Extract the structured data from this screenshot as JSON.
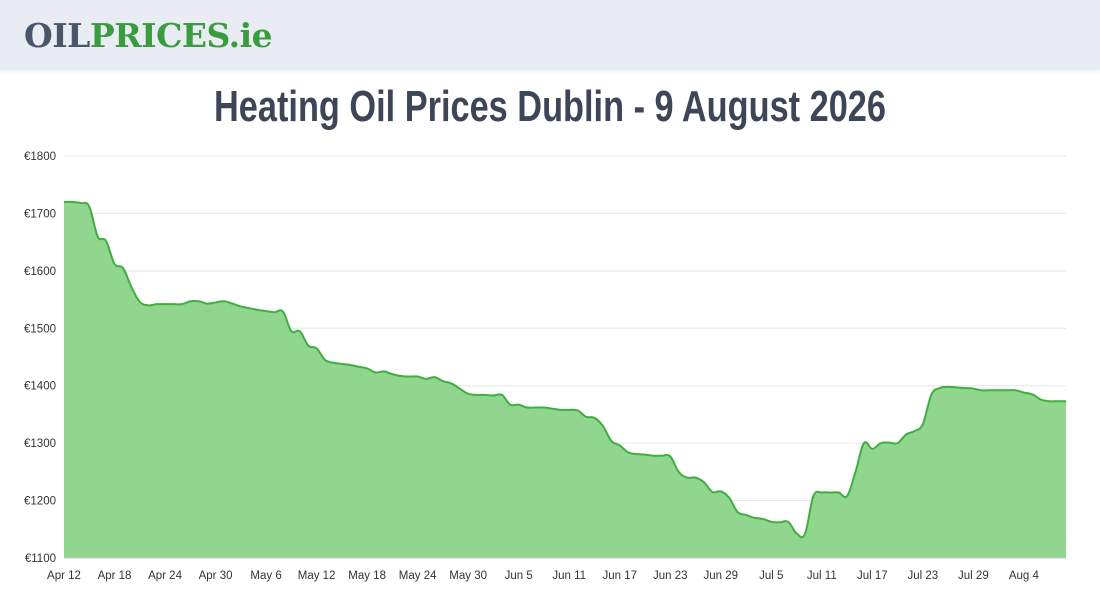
{
  "logo": {
    "part1": "OIL",
    "part2": "PRICES",
    "part3": ".ie"
  },
  "page_title": "Heating Oil Prices Dublin - 9 August 2026",
  "colors": {
    "header_bg": "#e9ecf3",
    "logo_dark": "#495569",
    "logo_green": "#3a9b3f",
    "line": "#3fae3f",
    "fill": "#90d68f"
  },
  "chart_data": {
    "type": "area",
    "title": "",
    "xlabel": "",
    "ylabel": "",
    "ylim": [
      1100,
      1800
    ],
    "y_ticks": [
      "€1100",
      "€1200",
      "€1300",
      "€1400",
      "€1500",
      "€1600",
      "€1700",
      "€1800"
    ],
    "x_tick_labels": [
      "Apr 12",
      "Apr 18",
      "Apr 24",
      "Apr 30",
      "May 6",
      "May 12",
      "May 18",
      "May 24",
      "May 30",
      "Jun 5",
      "Jun 11",
      "Jun 17",
      "Jun 23",
      "Jun 29",
      "Jul 5",
      "Jul 11",
      "Jul 17",
      "Jul 23",
      "Jul 29",
      "Aug 4"
    ],
    "grid": true,
    "legend": "none",
    "x_start": "Apr 12",
    "x_end": "Aug 9",
    "x_dates": [
      "Apr 12",
      "Apr 13",
      "Apr 14",
      "Apr 15",
      "Apr 16",
      "Apr 17",
      "Apr 18",
      "Apr 19",
      "Apr 20",
      "Apr 21",
      "Apr 22",
      "Apr 23",
      "Apr 24",
      "Apr 25",
      "Apr 26",
      "Apr 27",
      "Apr 28",
      "Apr 29",
      "Apr 30",
      "May 1",
      "May 2",
      "May 3",
      "May 4",
      "May 5",
      "May 6",
      "May 7",
      "May 8",
      "May 9",
      "May 10",
      "May 11",
      "May 12",
      "May 13",
      "May 14",
      "May 15",
      "May 16",
      "May 17",
      "May 18",
      "May 19",
      "May 20",
      "May 21",
      "May 22",
      "May 23",
      "May 24",
      "May 25",
      "May 26",
      "May 27",
      "May 28",
      "May 29",
      "May 30",
      "May 31",
      "Jun 1",
      "Jun 2",
      "Jun 3",
      "Jun 4",
      "Jun 5",
      "Jun 6",
      "Jun 7",
      "Jun 8",
      "Jun 9",
      "Jun 10",
      "Jun 11",
      "Jun 12",
      "Jun 13",
      "Jun 14",
      "Jun 15",
      "Jun 16",
      "Jun 17",
      "Jun 18",
      "Jun 19",
      "Jun 20",
      "Jun 21",
      "Jun 22",
      "Jun 23",
      "Jun 24",
      "Jun 25",
      "Jun 26",
      "Jun 27",
      "Jun 28",
      "Jun 29",
      "Jun 30",
      "Jul 1",
      "Jul 2",
      "Jul 3",
      "Jul 4",
      "Jul 5",
      "Jul 6",
      "Jul 7",
      "Jul 8",
      "Jul 9",
      "Jul 10",
      "Jul 11",
      "Jul 12",
      "Jul 13",
      "Jul 14",
      "Jul 15",
      "Jul 16",
      "Jul 17",
      "Jul 18",
      "Jul 19",
      "Jul 20",
      "Jul 21",
      "Jul 22",
      "Jul 23",
      "Jul 24",
      "Jul 25",
      "Jul 26",
      "Jul 27",
      "Jul 28",
      "Jul 29",
      "Jul 30",
      "Jul 31",
      "Aug 1",
      "Aug 2",
      "Aug 3",
      "Aug 4",
      "Aug 5",
      "Aug 6",
      "Aug 7",
      "Aug 8",
      "Aug 9"
    ],
    "values": [
      1720,
      1720,
      1718,
      1712,
      1660,
      1652,
      1612,
      1605,
      1572,
      1546,
      1540,
      1542,
      1542,
      1542,
      1542,
      1547,
      1547,
      1543,
      1545,
      1547,
      1543,
      1538,
      1535,
      1532,
      1530,
      1528,
      1529,
      1495,
      1495,
      1470,
      1465,
      1445,
      1440,
      1438,
      1436,
      1433,
      1430,
      1423,
      1425,
      1420,
      1417,
      1416,
      1416,
      1412,
      1415,
      1408,
      1404,
      1395,
      1386,
      1384,
      1384,
      1383,
      1384,
      1367,
      1367,
      1362,
      1362,
      1362,
      1360,
      1358,
      1358,
      1357,
      1346,
      1344,
      1330,
      1304,
      1296,
      1284,
      1281,
      1280,
      1278,
      1278,
      1277,
      1250,
      1240,
      1240,
      1232,
      1215,
      1216,
      1205,
      1180,
      1175,
      1170,
      1168,
      1163,
      1162,
      1163,
      1143,
      1142,
      1208,
      1214,
      1214,
      1214,
      1208,
      1250,
      1300,
      1290,
      1300,
      1301,
      1300,
      1315,
      1321,
      1333,
      1384,
      1396,
      1398,
      1397,
      1396,
      1395,
      1392,
      1392,
      1392,
      1392,
      1392,
      1388,
      1385,
      1376,
      1373,
      1373,
      1373
    ]
  }
}
